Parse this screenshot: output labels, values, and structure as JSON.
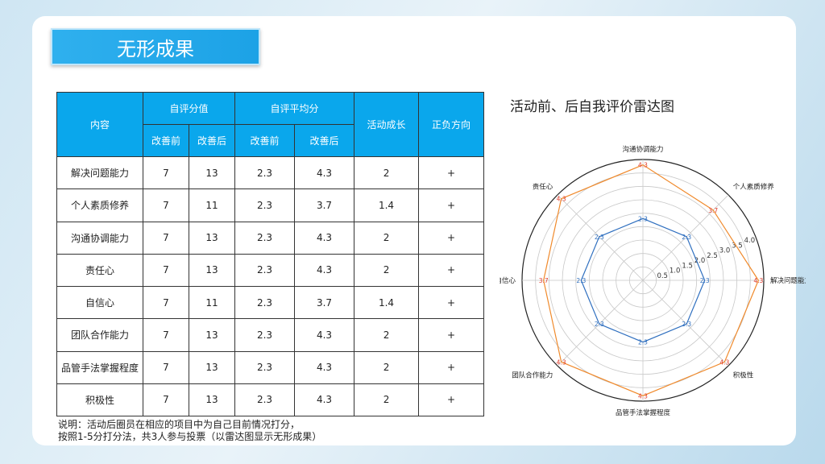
{
  "title": "无形成果",
  "table": {
    "headers": {
      "content": "内容",
      "self_score": "自评分值",
      "self_avg": "自评平均分",
      "growth": "活动成长",
      "direction": "正负方向",
      "before": "改善前",
      "after": "改善后"
    },
    "rows": [
      {
        "item": "解决问题能力",
        "score_before": "7",
        "score_after": "13",
        "avg_before": "2.3",
        "avg_after": "4.3",
        "growth": "2",
        "direction": "+"
      },
      {
        "item": "个人素质修养",
        "score_before": "7",
        "score_after": "11",
        "avg_before": "2.3",
        "avg_after": "3.7",
        "growth": "1.4",
        "direction": "+"
      },
      {
        "item": "沟通协调能力",
        "score_before": "7",
        "score_after": "13",
        "avg_before": "2.3",
        "avg_after": "4.3",
        "growth": "2",
        "direction": "+"
      },
      {
        "item": "责任心",
        "score_before": "7",
        "score_after": "13",
        "avg_before": "2.3",
        "avg_after": "4.3",
        "growth": "2",
        "direction": "+"
      },
      {
        "item": "自信心",
        "score_before": "7",
        "score_after": "11",
        "avg_before": "2.3",
        "avg_after": "3.7",
        "growth": "1.4",
        "direction": "+"
      },
      {
        "item": "团队合作能力",
        "score_before": "7",
        "score_after": "13",
        "avg_before": "2.3",
        "avg_after": "4.3",
        "growth": "2",
        "direction": "+"
      },
      {
        "item": "品管手法掌握程度",
        "score_before": "7",
        "score_after": "13",
        "avg_before": "2.3",
        "avg_after": "4.3",
        "growth": "2",
        "direction": "+"
      },
      {
        "item": "积极性",
        "score_before": "7",
        "score_after": "13",
        "avg_before": "2.3",
        "avg_after": "4.3",
        "growth": "2",
        "direction": "+"
      }
    ]
  },
  "note_line1": "说明：活动后圈员在相应的项目中为自己目前情况打分，",
  "note_line2": "按照1-5分打分法，共3人参与投票（以雷达图显示无形成果）",
  "chart_data": {
    "type": "radar",
    "title": "活动前、后自我评价雷达图",
    "categories": [
      "解决问题能力",
      "个人素质修养",
      "沟通协调能力",
      "责任心",
      "自信心",
      "团队合作能力",
      "品管手法掌握程度",
      "积极性"
    ],
    "series": [
      {
        "values": [
          2.3,
          2.3,
          2.3,
          2.3,
          2.3,
          2.3,
          2.3,
          2.3
        ],
        "color": "#2f6fbf"
      },
      {
        "values": [
          4.3,
          3.7,
          4.3,
          4.3,
          3.7,
          4.3,
          4.3,
          4.3
        ],
        "color": "#f08a2c"
      }
    ],
    "r_ticks": [
      "0.5",
      "1.0",
      "1.5",
      "2.0",
      "2.5",
      "3.0",
      "3.5",
      "4.0"
    ],
    "r_max": 4.5,
    "label_color_after": "#e03c2c",
    "label_color_before": "#2f6fbf"
  }
}
